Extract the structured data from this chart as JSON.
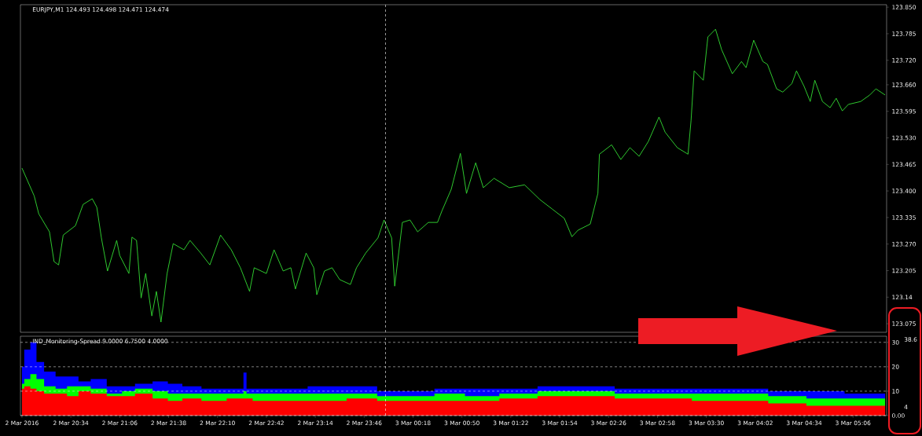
{
  "chart_data": [
    {
      "type": "line",
      "title": "EURJPY,M1  124.493 124.498 124.471 124.474",
      "tick_labels": "y",
      "xlim": [
        "2016-03-02T20:01",
        "2016-03-03T05:28"
      ],
      "ylim": [
        123.054,
        123.856
      ],
      "yticks": [
        {
          "value": 123.85,
          "label": "123.850"
        },
        123.785,
        {
          "value": 123.72,
          "label": "123.720"
        },
        {
          "value": 123.66,
          "label": "123.660"
        },
        123.595,
        {
          "value": 123.53,
          "label": "123.530"
        },
        123.465,
        {
          "value": 123.4,
          "label": "123.400"
        },
        123.335,
        {
          "value": 123.27,
          "label": "123.270"
        },
        123.205,
        123.14,
        123.075
      ],
      "ref_lines": [
        {
          "axis": "x",
          "value": "2016-03-03T00:00",
          "color": "#ffffff",
          "line_style": "dashed"
        }
      ],
      "series": [
        {
          "color": "#33dd33",
          "x": [
            "2016-03-02T20:02",
            "2016-03-02T20:10",
            "2016-03-02T20:13",
            "2016-03-02T20:20",
            "2016-03-02T20:23",
            "2016-03-02T20:26",
            "2016-03-02T20:29",
            "2016-03-02T20:37",
            "2016-03-02T20:42",
            "2016-03-02T20:48",
            "2016-03-02T20:51",
            "2016-03-02T20:54",
            "2016-03-02T20:58",
            "2016-03-02T21:04",
            "2016-03-02T21:06",
            "2016-03-02T21:12",
            "2016-03-02T21:14",
            "2016-03-02T21:17",
            "2016-03-02T21:20",
            "2016-03-02T21:23",
            "2016-03-02T21:27",
            "2016-03-02T21:30",
            "2016-03-02T21:33",
            "2016-03-02T21:37",
            "2016-03-02T21:41",
            "2016-03-02T21:48",
            "2016-03-02T21:52",
            "2016-03-02T21:59",
            "2016-03-02T22:05",
            "2016-03-02T22:12",
            "2016-03-02T22:19",
            "2016-03-02T22:25",
            "2016-03-02T22:31",
            "2016-03-02T22:34",
            "2016-03-02T22:42",
            "2016-03-02T22:47",
            "2016-03-02T22:53",
            "2016-03-02T22:58",
            "2016-03-02T23:01",
            "2016-03-02T23:08",
            "2016-03-02T23:13",
            "2016-03-02T23:15",
            "2016-03-02T23:20",
            "2016-03-02T23:25",
            "2016-03-02T23:30",
            "2016-03-02T23:37",
            "2016-03-02T23:41",
            "2016-03-02T23:47",
            "2016-03-02T23:55",
            "2016-03-02T23:59",
            "2016-03-03T00:04",
            "2016-03-03T00:06",
            "2016-03-03T00:11",
            "2016-03-03T00:16",
            "2016-03-03T00:21",
            "2016-03-03T00:28",
            "2016-03-03T00:34",
            "2016-03-03T00:37",
            "2016-03-03T00:43",
            "2016-03-03T00:49",
            "2016-03-03T00:53",
            "2016-03-03T00:59",
            "2016-03-03T01:04",
            "2016-03-03T01:11",
            "2016-03-03T01:21",
            "2016-03-03T01:31",
            "2016-03-03T01:41",
            "2016-03-03T01:49",
            "2016-03-03T01:57",
            "2016-03-03T02:02",
            "2016-03-03T02:06",
            "2016-03-03T02:14",
            "2016-03-03T02:19",
            "2016-03-03T02:20",
            "2016-03-03T02:28",
            "2016-03-03T02:34",
            "2016-03-03T02:40",
            "2016-03-03T02:46",
            "2016-03-03T02:52",
            "2016-03-03T02:59",
            "2016-03-03T03:03",
            "2016-03-03T03:11",
            "2016-03-03T03:18",
            "2016-03-03T03:20",
            "2016-03-03T03:22",
            "2016-03-03T03:28",
            "2016-03-03T03:31",
            "2016-03-03T03:36",
            "2016-03-03T03:40",
            "2016-03-03T03:47",
            "2016-03-03T03:53",
            "2016-03-03T03:56",
            "2016-03-03T04:01",
            "2016-03-03T04:07",
            "2016-03-03T04:10",
            "2016-03-03T04:16",
            "2016-03-03T04:20",
            "2016-03-03T04:26",
            "2016-03-03T04:29",
            "2016-03-03T04:34",
            "2016-03-03T04:38",
            "2016-03-03T04:41",
            "2016-03-03T04:46",
            "2016-03-03T04:51",
            "2016-03-03T04:55",
            "2016-03-03T04:59",
            "2016-03-03T05:03",
            "2016-03-03T05:11",
            "2016-03-03T05:17",
            "2016-03-03T05:21",
            "2016-03-03T05:27"
          ],
          "values": [
            123.456,
            123.388,
            123.344,
            123.3,
            123.227,
            123.219,
            123.292,
            123.315,
            123.367,
            123.381,
            123.36,
            123.285,
            123.204,
            123.279,
            123.242,
            123.198,
            123.287,
            123.279,
            123.138,
            123.198,
            123.094,
            123.154,
            123.079,
            123.198,
            123.271,
            123.256,
            123.279,
            123.248,
            123.219,
            123.292,
            123.256,
            123.212,
            123.154,
            123.212,
            123.198,
            123.256,
            123.204,
            123.212,
            123.16,
            123.248,
            123.212,
            123.146,
            123.204,
            123.212,
            123.183,
            123.171,
            123.212,
            123.248,
            123.285,
            123.329,
            123.285,
            123.167,
            123.323,
            123.329,
            123.3,
            123.323,
            123.323,
            123.352,
            123.404,
            123.492,
            123.394,
            123.469,
            123.408,
            123.431,
            123.408,
            123.415,
            123.379,
            123.356,
            123.333,
            123.288,
            123.304,
            123.319,
            123.394,
            123.49,
            123.513,
            123.477,
            123.506,
            123.485,
            123.521,
            123.581,
            123.544,
            123.506,
            123.49,
            123.573,
            123.694,
            123.671,
            123.777,
            123.796,
            123.746,
            123.687,
            123.717,
            123.702,
            123.769,
            123.717,
            123.71,
            123.65,
            123.642,
            123.663,
            123.694,
            123.656,
            123.619,
            123.671,
            123.619,
            123.604,
            123.627,
            123.596,
            123.612,
            123.619,
            123.635,
            123.65,
            123.635
          ]
        }
      ]
    },
    {
      "type": "area",
      "title": "IND_Monitoring-Spread 9.0000 6.7500 4.0000",
      "grid": "y",
      "xlim": [
        "2016-03-02T20:01",
        "2016-03-03T05:28"
      ],
      "ylim": [
        0,
        32.5
      ],
      "xticks": [
        {
          "value": "2016-03-02T20:02",
          "label": "2 Mar 2016"
        },
        {
          "value": "2016-03-02T20:34",
          "label": "2 Mar 20:34"
        },
        {
          "value": "2016-03-02T21:06",
          "label": "2 Mar 21:06"
        },
        {
          "value": "2016-03-02T21:38",
          "label": "2 Mar 21:38"
        },
        {
          "value": "2016-03-02T22:10",
          "label": "2 Mar 22:10"
        },
        {
          "value": "2016-03-02T22:42",
          "label": "2 Mar 22:42"
        },
        {
          "value": "2016-03-02T23:14",
          "label": "2 Mar 23:14"
        },
        {
          "value": "2016-03-02T23:46",
          "label": "2 Mar 23:46"
        },
        {
          "value": "2016-03-03T00:18",
          "label": "3 Mar 00:18"
        },
        {
          "value": "2016-03-03T00:50",
          "label": "3 Mar 00:50"
        },
        {
          "value": "2016-03-03T01:22",
          "label": "3 Mar 01:22"
        },
        {
          "value": "2016-03-03T01:54",
          "label": "3 Mar 01:54"
        },
        {
          "value": "2016-03-03T02:26",
          "label": "3 Mar 02:26"
        },
        {
          "value": "2016-03-03T02:58",
          "label": "3 Mar 02:58"
        },
        {
          "value": "2016-03-03T03:30",
          "label": "3 Mar 03:30"
        },
        {
          "value": "2016-03-03T04:02",
          "label": "3 Mar 04:02"
        },
        {
          "value": "2016-03-03T04:34",
          "label": "3 Mar 04:34"
        },
        {
          "value": "2016-03-03T05:06",
          "label": "3 Mar 05:06"
        }
      ],
      "yticks": [
        {
          "value": 0,
          "label": "0.00"
        },
        10,
        20,
        30
      ],
      "ref_lines": [
        {
          "axis": "x",
          "value": "2016-03-03T00:00",
          "color": "#ffffff",
          "line_style": "dashed"
        }
      ],
      "annotations": [
        "38.6",
        "4"
      ],
      "x": [
        "2016-03-02T20:02",
        "2016-03-02T20:05",
        "2016-03-02T20:10",
        "2016-03-02T20:13",
        "2016-03-02T20:20",
        "2016-03-02T20:28",
        "2016-03-02T20:35",
        "2016-03-02T20:43",
        "2016-03-02T20:51",
        "2016-03-02T21:04",
        "2016-03-02T21:11",
        "2016-03-02T21:21",
        "2016-03-02T21:34",
        "2016-03-02T21:41",
        "2016-03-02T21:53",
        "2016-03-02T22:06",
        "2016-03-02T22:26",
        "2016-03-02T22:28",
        "2016-03-02T22:30",
        "2016-03-02T22:36",
        "2016-03-02T22:56",
        "2016-03-02T23:22",
        "2016-03-02T23:47",
        "2016-03-03T00:02",
        "2016-03-03T00:22",
        "2016-03-03T00:42",
        "2016-03-03T01:02",
        "2016-03-03T01:27",
        "2016-03-03T01:52",
        "2016-03-03T02:17",
        "2016-03-03T02:43",
        "2016-03-03T03:08",
        "2016-03-03T03:33",
        "2016-03-03T03:58",
        "2016-03-03T04:23",
        "2016-03-03T04:48",
        "2016-03-03T05:13",
        "2016-03-03T05:27"
      ],
      "series": [
        {
          "color": "#0000ff",
          "values": [
            20,
            27,
            30,
            22,
            18,
            16,
            16,
            14,
            15,
            12,
            12,
            13,
            14,
            13,
            12,
            11,
            11,
            17.6,
            11,
            11,
            11,
            12,
            12,
            10,
            10,
            11,
            11,
            11,
            12,
            12,
            11,
            11,
            11,
            11,
            10,
            10,
            9,
            9
          ]
        },
        {
          "color": "#00ff00",
          "values": [
            13,
            15,
            17,
            15,
            12,
            11,
            12,
            12,
            11,
            9,
            10,
            11,
            10,
            9,
            9,
            9,
            9,
            10,
            9,
            9,
            9,
            9,
            9,
            8,
            8,
            9,
            8,
            9,
            10,
            10,
            9,
            9,
            9,
            9,
            8,
            7,
            7,
            7
          ]
        },
        {
          "color": "#ff0000",
          "values": [
            11,
            12,
            11,
            10,
            9,
            9,
            8,
            10,
            9,
            8,
            8,
            9,
            7,
            6,
            7,
            6,
            7,
            7,
            7,
            6,
            6,
            6,
            7,
            6,
            6,
            6,
            6,
            7,
            8,
            8,
            7,
            7,
            6,
            6,
            5,
            4,
            4,
            4
          ]
        }
      ]
    }
  ]
}
